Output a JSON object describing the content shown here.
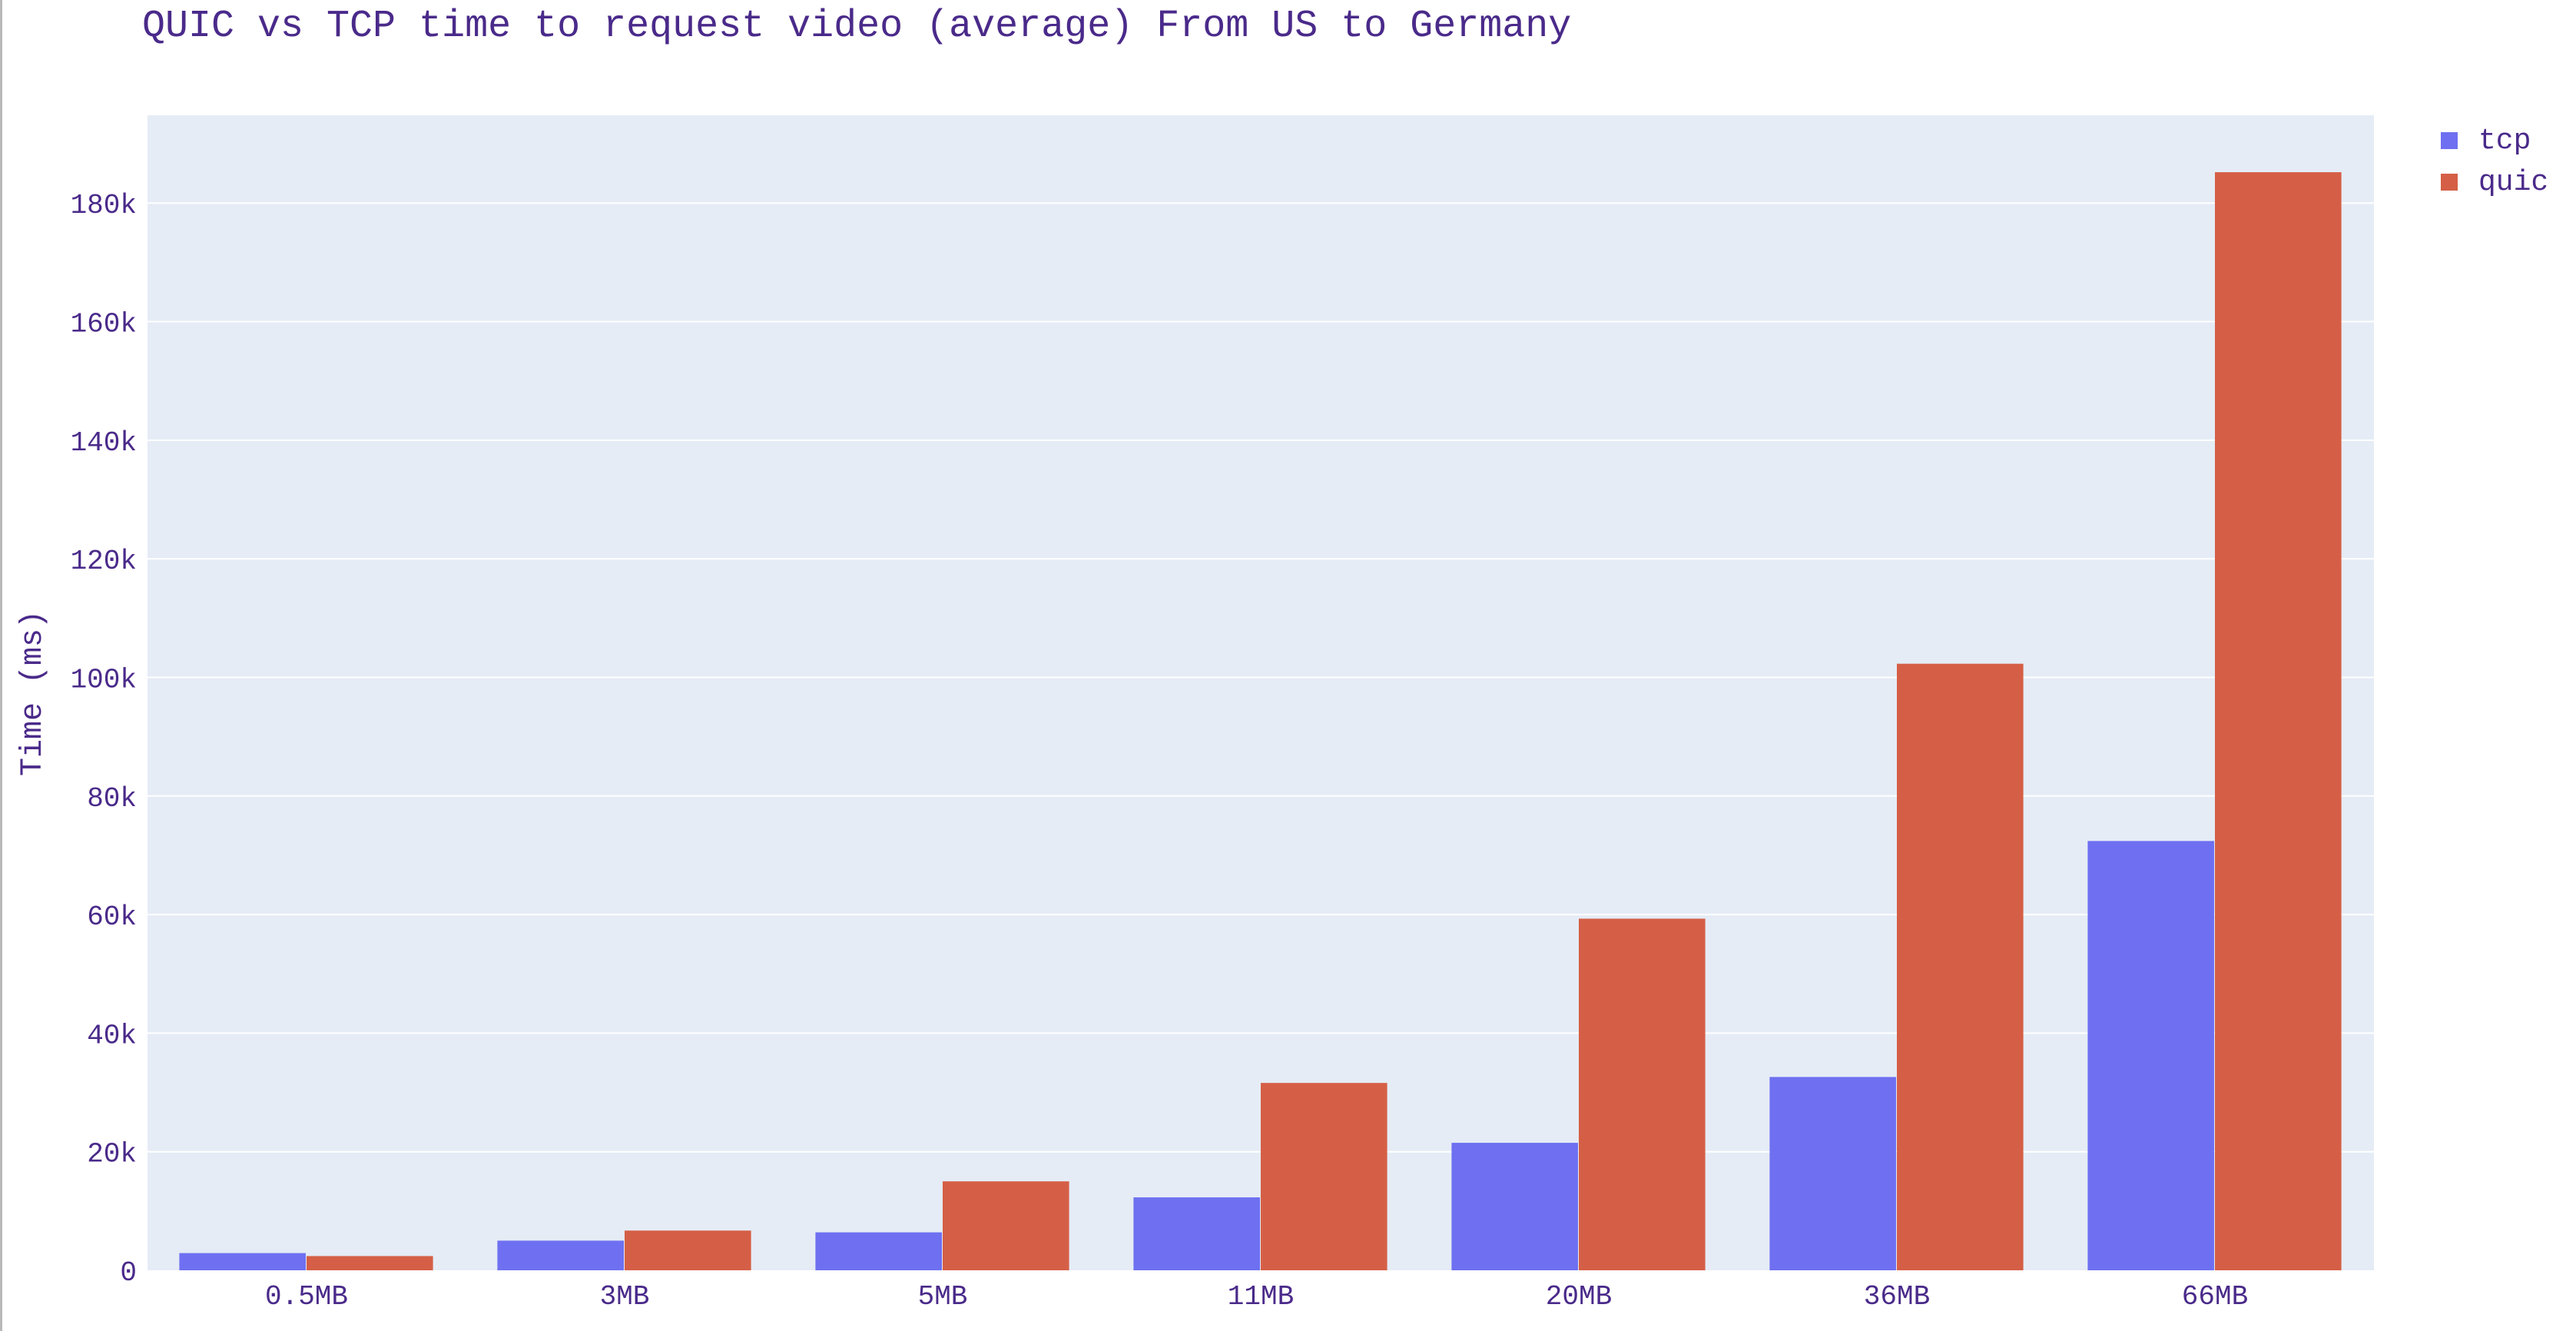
{
  "colors": {
    "text": "#4a2a8a",
    "plot_bg": "#e5ecf6",
    "grid": "#ffffff",
    "tcp": "#6e70f1",
    "quic": "#d55f46"
  },
  "chart_data": {
    "type": "bar",
    "title": "QUIC vs TCP time to request video (average) From US to Germany",
    "xlabel": "",
    "ylabel": "Time (ms)",
    "categories": [
      "0.5MB",
      "3MB",
      "5MB",
      "11MB",
      "20MB",
      "36MB",
      "66MB"
    ],
    "series": [
      {
        "name": "tcp",
        "color": "#6e70f1",
        "values": [
          2900,
          5000,
          6400,
          12300,
          21500,
          32600,
          72400
        ]
      },
      {
        "name": "quic",
        "color": "#d55f46",
        "values": [
          2400,
          6700,
          15000,
          31600,
          59300,
          102300,
          185200
        ]
      }
    ],
    "ylim": [
      0,
      194800
    ],
    "yticks": [
      0,
      20000,
      40000,
      60000,
      80000,
      100000,
      120000,
      140000,
      160000,
      180000
    ],
    "ytick_labels": [
      "0",
      "20k",
      "40k",
      "60k",
      "80k",
      "100k",
      "120k",
      "140k",
      "160k",
      "180k"
    ],
    "grid": true,
    "legend_position": "top-right"
  }
}
